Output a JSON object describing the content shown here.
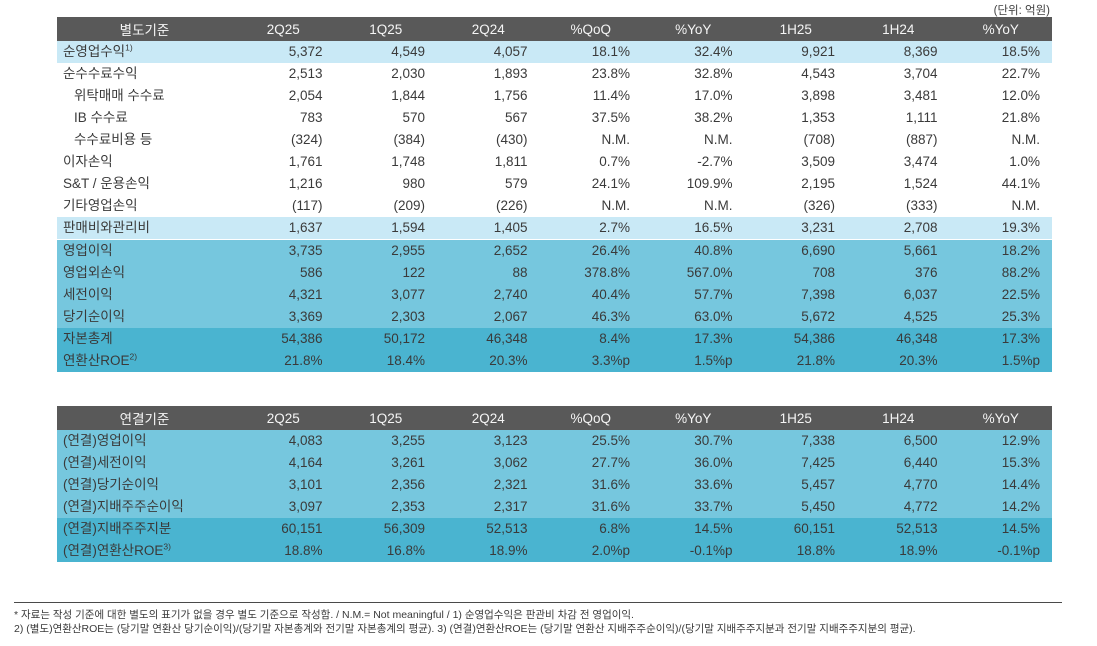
{
  "unit_label": "(단위: 억원)",
  "colors": {
    "header_bg": "#595959",
    "header_text": "#f5f5f5",
    "row_light_blue": "#c9e9f6",
    "row_mid_blue": "#76c7de",
    "row_dark_blue": "#4ab4d0",
    "body_text": "#3a3a3a"
  },
  "tables": [
    {
      "name": "separate-basis-table",
      "title": "별도기준",
      "columns": [
        "2Q25",
        "1Q25",
        "2Q24",
        "%QoQ",
        "%YoY",
        "1H25",
        "1H24",
        "%YoY"
      ],
      "rows": [
        {
          "label": "순영업수익",
          "sup": "1)",
          "indent": false,
          "style": "light",
          "sep": false,
          "values": [
            "5,372",
            "4,549",
            "4,057",
            "18.1%",
            "32.4%",
            "9,921",
            "8,369",
            "18.5%"
          ]
        },
        {
          "label": "순수수료수익",
          "sup": "",
          "indent": false,
          "style": "white",
          "sep": false,
          "values": [
            "2,513",
            "2,030",
            "1,893",
            "23.8%",
            "32.8%",
            "4,543",
            "3,704",
            "22.7%"
          ]
        },
        {
          "label": "위탁매매 수수료",
          "sup": "",
          "indent": true,
          "style": "white",
          "sep": false,
          "values": [
            "2,054",
            "1,844",
            "1,756",
            "11.4%",
            "17.0%",
            "3,898",
            "3,481",
            "12.0%"
          ]
        },
        {
          "label": "IB 수수료",
          "sup": "",
          "indent": true,
          "style": "white",
          "sep": false,
          "values": [
            "783",
            "570",
            "567",
            "37.5%",
            "38.2%",
            "1,353",
            "1,111",
            "21.8%"
          ]
        },
        {
          "label": "수수료비용 등",
          "sup": "",
          "indent": true,
          "style": "white",
          "sep": false,
          "values": [
            "(324)",
            "(384)",
            "(430)",
            "N.M.",
            "N.M.",
            "(708)",
            "(887)",
            "N.M."
          ]
        },
        {
          "label": "이자손익",
          "sup": "",
          "indent": false,
          "style": "white",
          "sep": false,
          "values": [
            "1,761",
            "1,748",
            "1,811",
            "0.7%",
            "-2.7%",
            "3,509",
            "3,474",
            "1.0%"
          ]
        },
        {
          "label": "S&T / 운용손익",
          "sup": "",
          "indent": false,
          "style": "white",
          "sep": false,
          "values": [
            "1,216",
            "980",
            "579",
            "24.1%",
            "109.9%",
            "2,195",
            "1,524",
            "44.1%"
          ]
        },
        {
          "label": "기타영업손익",
          "sup": "",
          "indent": false,
          "style": "white",
          "sep": false,
          "values": [
            "(117)",
            "(209)",
            "(226)",
            "N.M.",
            "N.M.",
            "(326)",
            "(333)",
            "N.M."
          ]
        },
        {
          "label": "판매비와관리비",
          "sup": "",
          "indent": false,
          "style": "light",
          "sep": true,
          "values": [
            "1,637",
            "1,594",
            "1,405",
            "2.7%",
            "16.5%",
            "3,231",
            "2,708",
            "19.3%"
          ]
        },
        {
          "label": "영업이익",
          "sup": "",
          "indent": false,
          "style": "mid",
          "sep": false,
          "values": [
            "3,735",
            "2,955",
            "2,652",
            "26.4%",
            "40.8%",
            "6,690",
            "5,661",
            "18.2%"
          ]
        },
        {
          "label": "영업외손익",
          "sup": "",
          "indent": false,
          "style": "mid",
          "sep": false,
          "values": [
            "586",
            "122",
            "88",
            "378.8%",
            "567.0%",
            "708",
            "376",
            "88.2%"
          ]
        },
        {
          "label": "세전이익",
          "sup": "",
          "indent": false,
          "style": "mid",
          "sep": false,
          "values": [
            "4,321",
            "3,077",
            "2,740",
            "40.4%",
            "57.7%",
            "7,398",
            "6,037",
            "22.5%"
          ]
        },
        {
          "label": "당기순이익",
          "sup": "",
          "indent": false,
          "style": "mid",
          "sep": false,
          "values": [
            "3,369",
            "2,303",
            "2,067",
            "46.3%",
            "63.0%",
            "5,672",
            "4,525",
            "25.3%"
          ]
        },
        {
          "label": "자본총계",
          "sup": "",
          "indent": false,
          "style": "dark",
          "sep": false,
          "values": [
            "54,386",
            "50,172",
            "46,348",
            "8.4%",
            "17.3%",
            "54,386",
            "46,348",
            "17.3%"
          ]
        },
        {
          "label": "연환산ROE",
          "sup": "2)",
          "indent": false,
          "style": "dark",
          "sep": false,
          "values": [
            "21.8%",
            "18.4%",
            "20.3%",
            "3.3%p",
            "1.5%p",
            "21.8%",
            "20.3%",
            "1.5%p"
          ]
        }
      ]
    },
    {
      "name": "consolidated-basis-table",
      "title": "연결기준",
      "columns": [
        "2Q25",
        "1Q25",
        "2Q24",
        "%QoQ",
        "%YoY",
        "1H25",
        "1H24",
        "%YoY"
      ],
      "rows": [
        {
          "label": "(연결)영업이익",
          "sup": "",
          "indent": false,
          "style": "mid",
          "sep": false,
          "values": [
            "4,083",
            "3,255",
            "3,123",
            "25.5%",
            "30.7%",
            "7,338",
            "6,500",
            "12.9%"
          ]
        },
        {
          "label": "(연결)세전이익",
          "sup": "",
          "indent": false,
          "style": "mid",
          "sep": false,
          "values": [
            "4,164",
            "3,261",
            "3,062",
            "27.7%",
            "36.0%",
            "7,425",
            "6,440",
            "15.3%"
          ]
        },
        {
          "label": "(연결)당기순이익",
          "sup": "",
          "indent": false,
          "style": "mid",
          "sep": false,
          "values": [
            "3,101",
            "2,356",
            "2,321",
            "31.6%",
            "33.6%",
            "5,457",
            "4,770",
            "14.4%"
          ]
        },
        {
          "label": "(연결)지배주주순이익",
          "sup": "",
          "indent": false,
          "style": "mid",
          "sep": false,
          "values": [
            "3,097",
            "2,353",
            "2,317",
            "31.6%",
            "33.7%",
            "5,450",
            "4,772",
            "14.2%"
          ]
        },
        {
          "label": "(연결)지배주주지분",
          "sup": "",
          "indent": false,
          "style": "dark",
          "sep": false,
          "values": [
            "60,151",
            "56,309",
            "52,513",
            "6.8%",
            "14.5%",
            "60,151",
            "52,513",
            "14.5%"
          ]
        },
        {
          "label": "(연결)연환산ROE",
          "sup": "3)",
          "indent": false,
          "style": "dark",
          "sep": false,
          "values": [
            "18.8%",
            "16.8%",
            "18.9%",
            "2.0%p",
            "-0.1%p",
            "18.8%",
            "18.9%",
            "-0.1%p"
          ]
        }
      ]
    }
  ],
  "footnotes": [
    "* 자료는 작성 기준에 대한 별도의 표기가 없을 경우 별도 기준으로 작성함. / N.M.= Not meaningful / 1) 순영업수익은 판관비 차감 전 영업이익.",
    "2) (별도)연환산ROE는 (당기말 연환산 당기순이익)/(당기말 자본총계와 전기말 자본총계의 평균).  3) (연결)연환산ROE는 (당기말 연환산 지배주주순이익)/(당기말 지배주주지분과 전기말 지배주주지분의 평균)."
  ]
}
